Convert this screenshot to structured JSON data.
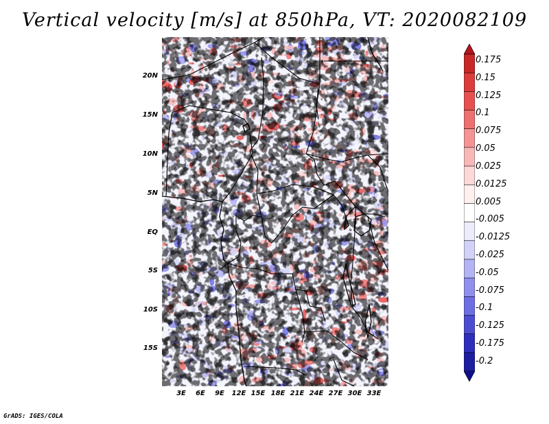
{
  "title": "Vertical velocity [m/s] at 850hPa, VT: 2020082109",
  "credit": "GrADS: IGES/COLA",
  "map": {
    "region": "Central Africa",
    "lat_range": [
      -19.5,
      25
    ],
    "lon_range": [
      0,
      35
    ],
    "lat_labels": [
      "20N",
      "15N",
      "10N",
      "5N",
      "EQ",
      "5S",
      "10S",
      "15S"
    ],
    "lon_labels": [
      "3E",
      "6E",
      "9E",
      "12E",
      "15E",
      "18E",
      "21E",
      "24E",
      "27E",
      "30E",
      "33E"
    ],
    "border_color": "#000000"
  },
  "colorbar": {
    "levels": [
      "0.175",
      "0.15",
      "0.125",
      "0.1",
      "0.075",
      "0.05",
      "0.025",
      "0.0125",
      "0.005",
      "-0.005",
      "-0.0125",
      "-0.025",
      "-0.05",
      "-0.075",
      "-0.1",
      "-0.125",
      "-0.175",
      "-0.2"
    ],
    "colors": [
      "#b4141e",
      "#c82828",
      "#dc3c3c",
      "#e65050",
      "#ee7070",
      "#f49494",
      "#f8b8b8",
      "#fcd8d8",
      "#fff0f0",
      "#ffffff",
      "#ececfc",
      "#d2d2f8",
      "#b4b4f4",
      "#9090ec",
      "#6e6ee4",
      "#4c4cd2",
      "#2e2ebe",
      "#1e1ea0",
      "#10108a"
    ]
  }
}
